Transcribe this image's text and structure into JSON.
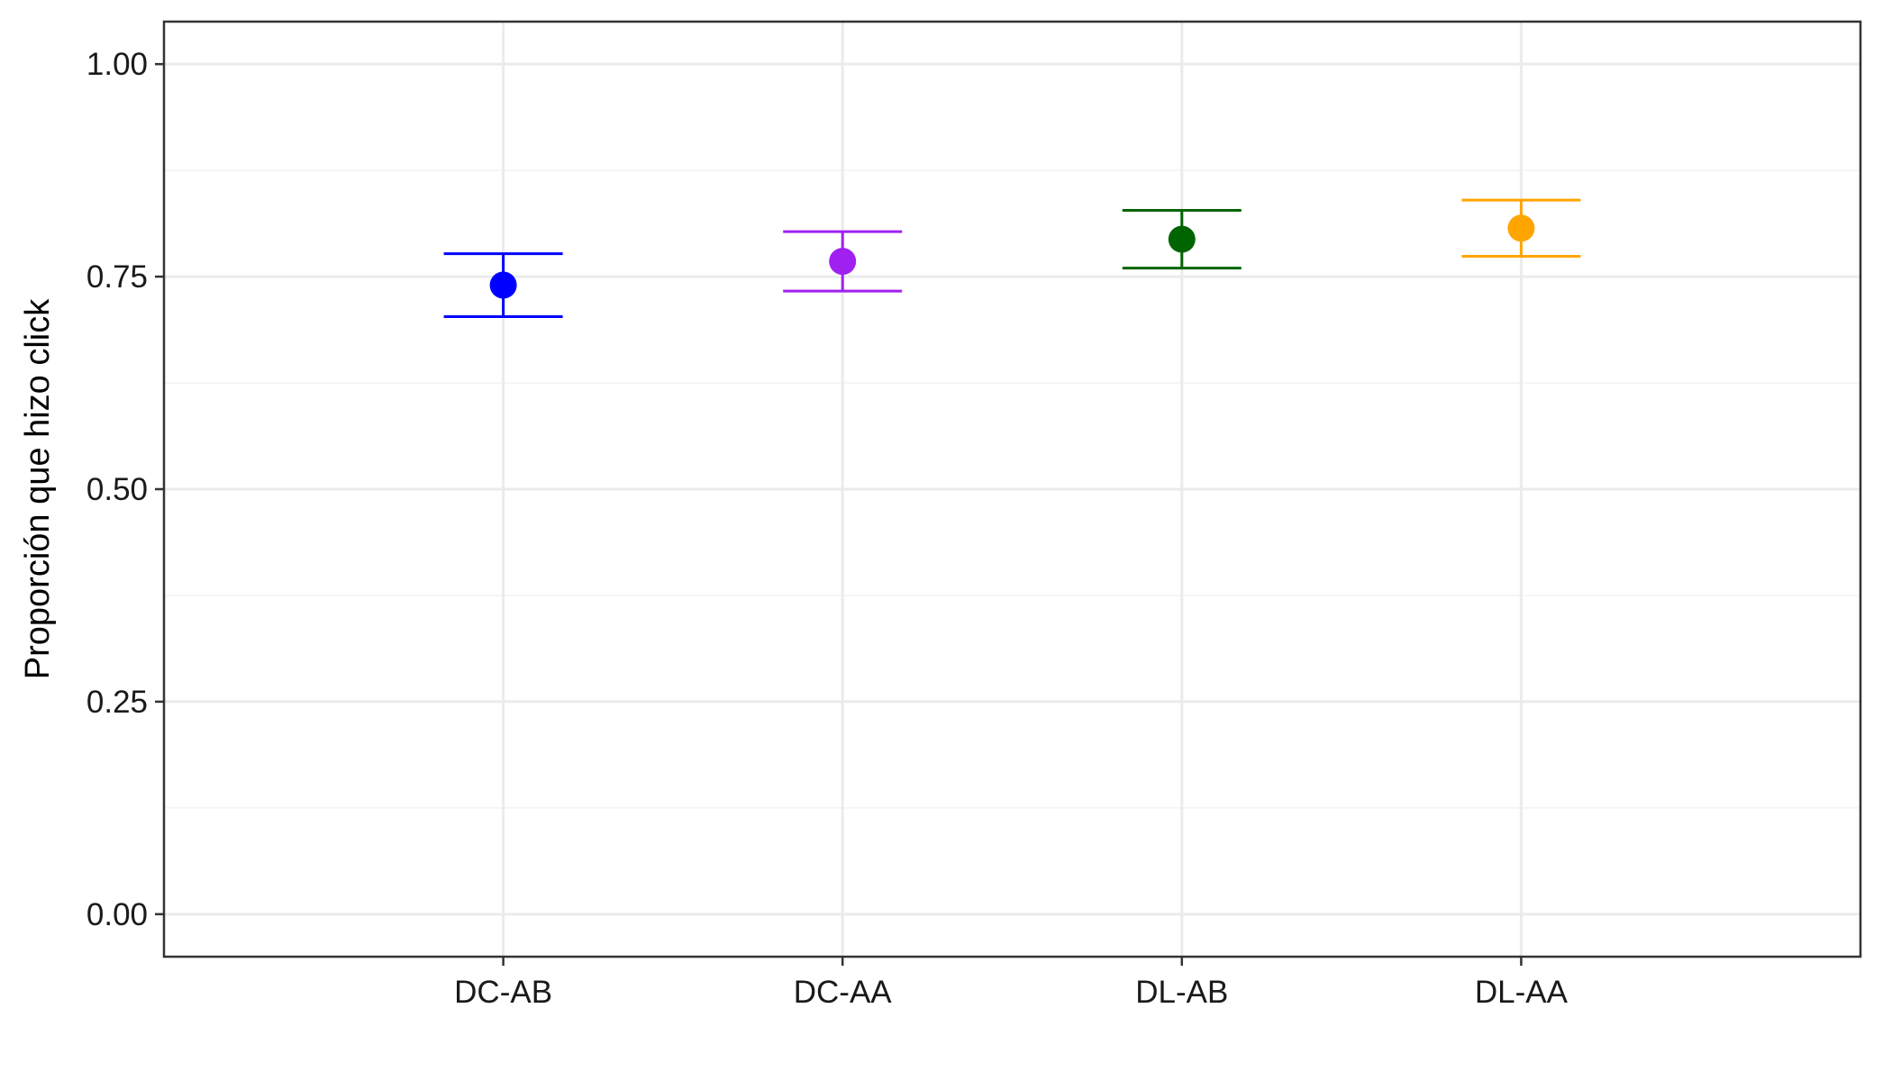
{
  "chart_data": {
    "type": "scatter",
    "title": "",
    "xlabel": "",
    "ylabel": "Proporción que hizo click",
    "categories": [
      "DC-AB",
      "DC-AA",
      "DL-AB",
      "DL-AA"
    ],
    "yticks": [
      "0.00",
      "0.25",
      "0.50",
      "0.75",
      "1.00"
    ],
    "ylim": [
      -0.05,
      1.05
    ],
    "grid": true,
    "legend": "none",
    "points": [
      {
        "category": "DC-AB",
        "value": 0.74,
        "lower": 0.703,
        "upper": 0.777,
        "color": "#0000ff"
      },
      {
        "category": "DC-AA",
        "value": 0.768,
        "lower": 0.733,
        "upper": 0.803,
        "color": "#a020f0"
      },
      {
        "category": "DL-AB",
        "value": 0.794,
        "lower": 0.76,
        "upper": 0.828,
        "color": "#006400"
      },
      {
        "category": "DL-AA",
        "value": 0.807,
        "lower": 0.774,
        "upper": 0.84,
        "color": "#ffa500"
      }
    ]
  }
}
